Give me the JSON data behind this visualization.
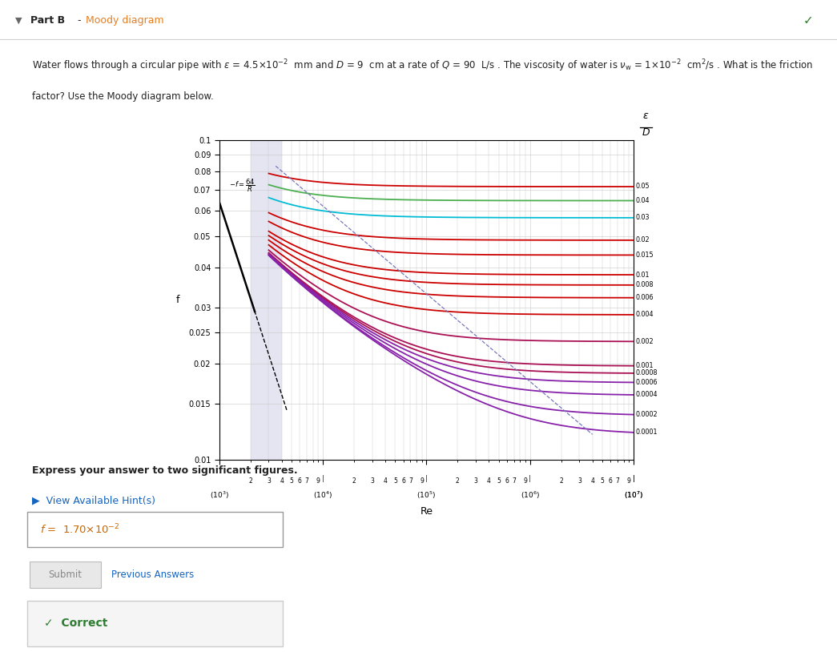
{
  "epsilon_D_values": [
    0.05,
    0.04,
    0.03,
    0.02,
    0.015,
    0.01,
    0.008,
    0.006,
    0.004,
    0.002,
    0.001,
    0.0008,
    0.0006,
    0.0004,
    0.0002,
    0.0001
  ],
  "epsilon_D_labels": [
    "0.05",
    "0.04",
    "0.03",
    "0.02",
    "0.015",
    "0.01",
    "0.008",
    "0.006",
    "0.004",
    "0.002",
    "0.001",
    "0.0008",
    "0.0006",
    "0.0004",
    "0.0002",
    "0.0001"
  ],
  "curve_colors": [
    "#cc0000",
    "#4caf50",
    "#00bcd4",
    "#cc0000",
    "#cc0000",
    "#cc0000",
    "#cc0000",
    "#cc0000",
    "#cc0000",
    "#aa1155",
    "#aa1155",
    "#aa1155",
    "#8822aa",
    "#8822aa",
    "#8822aa",
    "#8822aa"
  ],
  "Re_min": 1000,
  "Re_max": 10000000,
  "f_min": 0.01,
  "f_max": 0.1,
  "background_color": "#ffffff",
  "grid_color": "#cccccc",
  "header_bg": "#f5f5f5",
  "part_b_bold": "Part B",
  "part_b_dash": " - ",
  "part_b_moody": "Moody diagram",
  "checkmark": "✓",
  "prob_line1a": "Water flows through a circular pipe with ",
  "prob_line1b": " = 4.5×10",
  "prob_line1c": "⁻²",
  "prob_line1d": "  mm and ",
  "prob_line1e": "D",
  "prob_line1f": " = 9  cm at a rate of ",
  "prob_line1g": "Q",
  "prob_line1h": " = 90  L/s . The viscosity of water is ",
  "prob_line1i": "ν",
  "prob_line1j": "w",
  "prob_line1k": " = 1×10",
  "prob_line1l": "⁻²",
  "prob_line1m": "  cm",
  "prob_line1n": "²",
  "prob_line1o": "/s . What is the friction",
  "prob_line2": "factor? Use the Moody diagram below.",
  "express_text": "Express your answer to two significant figures.",
  "hint_text": "►  View Available Hint(s)",
  "answer_label": "f = ",
  "answer_value": " 1.70×10",
  "answer_exp": "⁻²",
  "submit_text": "Submit",
  "prev_text": "Previous Answers",
  "correct_text": "Correct",
  "correct_color": "#2e7d32",
  "hint_color": "#1565c0",
  "moody_color": "#e67e22",
  "prev_color": "#1565c0"
}
